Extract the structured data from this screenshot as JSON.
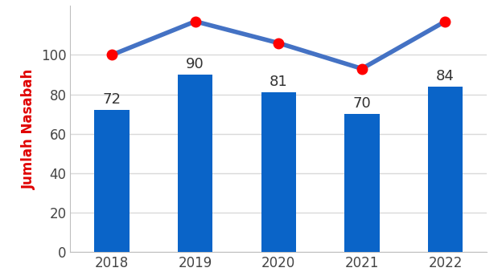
{
  "chart_data": {
    "type": "bar",
    "y_label": "Jumlah Nasabah",
    "categories": [
      "2018",
      "2019",
      "2020",
      "2021",
      "2022"
    ],
    "series": [
      {
        "type": "bar",
        "color": "#0a64c8",
        "values": [
          72,
          90,
          81,
          70,
          84
        ]
      },
      {
        "type": "line",
        "color": "#4472c4",
        "marker": "o",
        "line_style": "solid",
        "values": [
          100,
          117,
          106,
          93,
          117
        ]
      }
    ],
    "ylim": [
      0,
      125
    ],
    "yticks": [
      0,
      20,
      40,
      60,
      80,
      100
    ],
    "grid": true,
    "data_labels": true
  }
}
